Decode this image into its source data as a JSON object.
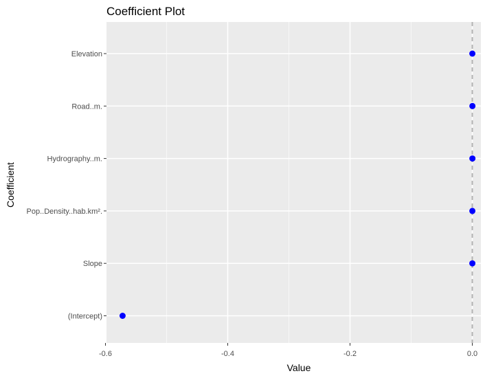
{
  "chart_data": {
    "type": "scatter",
    "title": "Coefficient Plot",
    "xlabel": "Value",
    "ylabel": "Coefficient",
    "xlim": [
      -0.6,
      0.01
    ],
    "xticks": [
      -0.6,
      -0.4,
      -0.2,
      0.0
    ],
    "xtick_labels": [
      "-0.6",
      "-0.4",
      "-0.2",
      "0.0"
    ],
    "reference_line": {
      "x": 0.0,
      "style": "dashed"
    },
    "grid": true,
    "categories": [
      "(Intercept)",
      "Slope",
      "Pop..Density..hab.km².",
      "Hydrography..m.",
      "Road..m.",
      "Elevation"
    ],
    "values": [
      -0.572,
      0.0001,
      0.0001,
      0.0002,
      0.0002,
      0.0001
    ],
    "colors": {
      "panel": "#ebebeb",
      "grid_major": "#ffffff",
      "grid_minor": "#f7f7f7",
      "point": "#0000ff",
      "reference_line": "#b3b3b3"
    }
  }
}
